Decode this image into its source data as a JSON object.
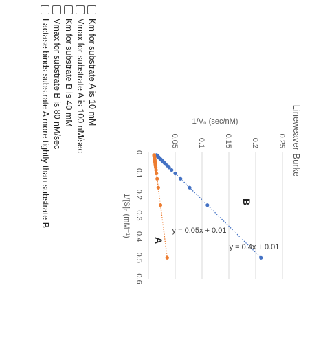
{
  "chart_data": {
    "type": "scatter",
    "title": "Lineweaver-Burke",
    "xlabel": "1/[S]₀ (mM⁻¹)",
    "ylabel": "1/V₀ (sec/nM)",
    "xlim": [
      0,
      0.6
    ],
    "ylim": [
      0,
      0.25
    ],
    "x_ticks": [
      "0",
      "0.1",
      "0.2",
      "0.3",
      "0.4",
      "0.5",
      "0.6"
    ],
    "y_ticks": [
      "0.05",
      "0.1",
      "0.15",
      "0.2",
      "0.25"
    ],
    "grid": true,
    "series": [
      {
        "name": "B",
        "color": "#4472C4",
        "equation": "y = 0.4x + 0.01",
        "slope": 0.4,
        "intercept": 0.01,
        "x": [
          0.5,
          0.25,
          0.167,
          0.125,
          0.1,
          0.0833,
          0.0714,
          0.0625,
          0.0556,
          0.05,
          0.0455,
          0.0417,
          0.0385,
          0.0357,
          0.0333,
          0.03125,
          0.0294,
          0.0278,
          0.0263,
          0.025,
          0.0238,
          0.0227,
          0.0217,
          0.0208,
          0.02,
          0.0192,
          0.0185,
          0.0179,
          0.0172,
          0.0167,
          0.0161,
          0.0156,
          0.0152,
          0.0147,
          0.0143,
          0.0139,
          0.0135,
          0.0132,
          0.0128,
          0.0125
        ],
        "y": [
          0.21,
          0.11,
          0.0768,
          0.06,
          0.05,
          0.0433,
          0.0386,
          0.035,
          0.0322,
          0.03,
          0.0282,
          0.0267,
          0.0254,
          0.0243,
          0.0233,
          0.0225,
          0.0218,
          0.0211,
          0.0205,
          0.02,
          0.0195,
          0.0191,
          0.0187,
          0.0183,
          0.018,
          0.0177,
          0.0174,
          0.0171,
          0.0169,
          0.0167,
          0.0164,
          0.0162,
          0.0161,
          0.0159,
          0.0157,
          0.0156,
          0.0154,
          0.0153,
          0.0151,
          0.015
        ]
      },
      {
        "name": "A",
        "color": "#ED7D31",
        "equation": "y = 0.05x + 0.01",
        "slope": 0.05,
        "intercept": 0.01,
        "x": [
          0.5,
          0.25,
          0.167,
          0.125,
          0.1,
          0.0833,
          0.0714,
          0.0625,
          0.0556,
          0.05,
          0.0455,
          0.0417,
          0.0385,
          0.0357,
          0.0333,
          0.03125,
          0.0294,
          0.0278,
          0.0263,
          0.025,
          0.0238,
          0.0227,
          0.0217,
          0.0208,
          0.02,
          0.0192,
          0.0185,
          0.0179,
          0.0172,
          0.0167,
          0.0161,
          0.0156,
          0.0152,
          0.0147,
          0.0143,
          0.0139,
          0.0135,
          0.0132,
          0.0128,
          0.0125
        ],
        "y": [
          0.035,
          0.0225,
          0.0184,
          0.0163,
          0.015,
          0.0142,
          0.0136,
          0.0131,
          0.0128,
          0.0125,
          0.0123,
          0.0121,
          0.0119,
          0.0118,
          0.0117,
          0.0116,
          0.0115,
          0.0114,
          0.0113,
          0.0113,
          0.0112,
          0.0111,
          0.0111,
          0.011,
          0.011,
          0.011,
          0.0109,
          0.0109,
          0.0109,
          0.0108,
          0.0108,
          0.0108,
          0.0108,
          0.0107,
          0.0107,
          0.0107,
          0.0107,
          0.0107,
          0.0106,
          0.0106
        ]
      }
    ]
  },
  "options": [
    "Km for substrate A is 10 mM",
    "Vmax for substrate A is 100 nM/sec",
    "Km for substrate B is 40 mM",
    "Vmax for substrate B is 80 nM/sec",
    "Lactase binds substrate A more tightly than substrate B"
  ]
}
